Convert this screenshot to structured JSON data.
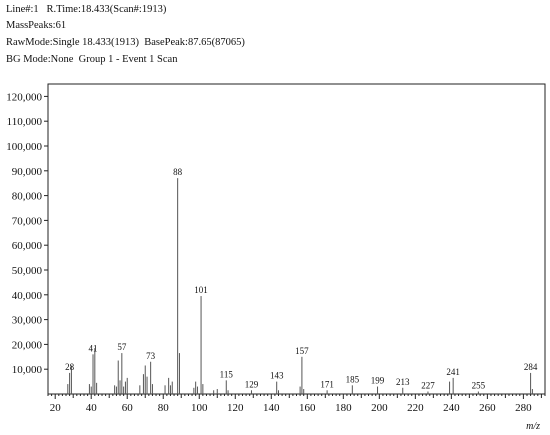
{
  "header": {
    "line1": "Line#:1   R.Time:18.433(Scan#:1913)",
    "line2": "MassPeaks:61",
    "line3": "RawMode:Single 18.433(1913)  BasePeak:87.65(87065)",
    "line4": "BG Mode:None  Group 1 - Event 1 Scan"
  },
  "chart_data": {
    "type": "bar",
    "title": "",
    "xlabel": "m/z",
    "ylabel": "",
    "xlim": [
      16,
      292
    ],
    "ylim": [
      0,
      125000
    ],
    "xticks": [
      20,
      40,
      60,
      80,
      100,
      120,
      140,
      160,
      180,
      200,
      220,
      240,
      260,
      280
    ],
    "yticks": [
      10000,
      20000,
      30000,
      40000,
      50000,
      60000,
      70000,
      80000,
      90000,
      100000,
      110000,
      120000
    ],
    "ytick_labels": [
      "10,000",
      "20,000",
      "30,000",
      "40,000",
      "50,000",
      "60,000",
      "70,000",
      "80,000",
      "90,000",
      "100,000",
      "110,000",
      "120,000"
    ],
    "peaks": [
      {
        "mz": 27,
        "intensity": 4000
      },
      {
        "mz": 28,
        "intensity": 8500,
        "label": "28"
      },
      {
        "mz": 29,
        "intensity": 11500
      },
      {
        "mz": 39,
        "intensity": 4000
      },
      {
        "mz": 40,
        "intensity": 3000
      },
      {
        "mz": 41,
        "intensity": 16000,
        "label": "41"
      },
      {
        "mz": 42,
        "intensity": 18500
      },
      {
        "mz": 43,
        "intensity": 4500
      },
      {
        "mz": 53,
        "intensity": 3500
      },
      {
        "mz": 54,
        "intensity": 3000
      },
      {
        "mz": 55,
        "intensity": 13500
      },
      {
        "mz": 56,
        "intensity": 5500
      },
      {
        "mz": 57,
        "intensity": 16500,
        "label": "57"
      },
      {
        "mz": 58,
        "intensity": 3000
      },
      {
        "mz": 59,
        "intensity": 5000
      },
      {
        "mz": 60,
        "intensity": 6500
      },
      {
        "mz": 67,
        "intensity": 3500
      },
      {
        "mz": 69,
        "intensity": 8000
      },
      {
        "mz": 70,
        "intensity": 11500
      },
      {
        "mz": 71,
        "intensity": 7000
      },
      {
        "mz": 73,
        "intensity": 13000,
        "label": "73"
      },
      {
        "mz": 74,
        "intensity": 4000
      },
      {
        "mz": 81,
        "intensity": 3500
      },
      {
        "mz": 83,
        "intensity": 6500
      },
      {
        "mz": 84,
        "intensity": 3500
      },
      {
        "mz": 85,
        "intensity": 5000
      },
      {
        "mz": 88,
        "intensity": 87065,
        "label": "88"
      },
      {
        "mz": 89,
        "intensity": 16500
      },
      {
        "mz": 97,
        "intensity": 2500
      },
      {
        "mz": 98,
        "intensity": 5000
      },
      {
        "mz": 99,
        "intensity": 3000
      },
      {
        "mz": 101,
        "intensity": 39500,
        "label": "101"
      },
      {
        "mz": 102,
        "intensity": 4000
      },
      {
        "mz": 108,
        "intensity": 1500
      },
      {
        "mz": 110,
        "intensity": 2000
      },
      {
        "mz": 115,
        "intensity": 5500,
        "label": "115"
      },
      {
        "mz": 116,
        "intensity": 1500
      },
      {
        "mz": 129,
        "intensity": 1500,
        "label": "129"
      },
      {
        "mz": 143,
        "intensity": 5000,
        "label": "143"
      },
      {
        "mz": 144,
        "intensity": 1500
      },
      {
        "mz": 156,
        "intensity": 3000
      },
      {
        "mz": 157,
        "intensity": 15000,
        "label": "157"
      },
      {
        "mz": 158,
        "intensity": 2000
      },
      {
        "mz": 171,
        "intensity": 1500,
        "label": "171"
      },
      {
        "mz": 185,
        "intensity": 3500,
        "label": "185"
      },
      {
        "mz": 199,
        "intensity": 3000,
        "label": "199"
      },
      {
        "mz": 213,
        "intensity": 2500,
        "label": "213"
      },
      {
        "mz": 227,
        "intensity": 1000,
        "label": "227"
      },
      {
        "mz": 239,
        "intensity": 5000
      },
      {
        "mz": 241,
        "intensity": 6500,
        "label": "241"
      },
      {
        "mz": 255,
        "intensity": 1000,
        "label": "255"
      },
      {
        "mz": 284,
        "intensity": 8500,
        "label": "284"
      },
      {
        "mz": 285,
        "intensity": 2000
      }
    ]
  }
}
